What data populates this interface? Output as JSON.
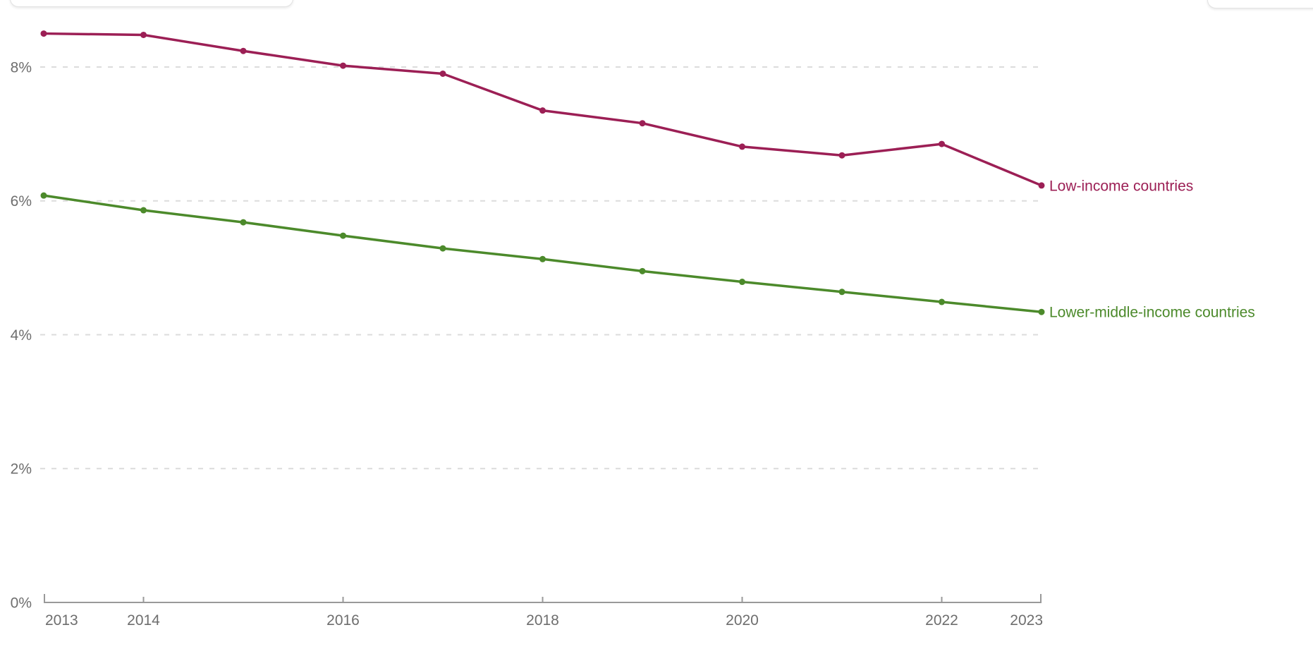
{
  "top_bar": {
    "left_control_name": "settings-control-cutoff",
    "right_control_name": "entity-control-cutoff"
  },
  "chart_data": {
    "type": "line",
    "x": [
      2013,
      2014,
      2015,
      2016,
      2017,
      2018,
      2019,
      2020,
      2021,
      2022,
      2023
    ],
    "series": [
      {
        "name": "Low-income countries",
        "color": "#9c1f55",
        "values": [
          8.5,
          8.48,
          8.24,
          8.02,
          7.9,
          7.35,
          7.16,
          6.81,
          6.68,
          6.85,
          6.23
        ]
      },
      {
        "name": "Lower-middle-income countries",
        "color": "#4c8a2b",
        "values": [
          6.08,
          5.86,
          5.68,
          5.48,
          5.29,
          5.13,
          4.95,
          4.79,
          4.64,
          4.49,
          4.34
        ]
      }
    ],
    "y_ticks": [
      {
        "value": 0,
        "label": "0%"
      },
      {
        "value": 2,
        "label": "2%"
      },
      {
        "value": 4,
        "label": "4%"
      },
      {
        "value": 6,
        "label": "6%"
      },
      {
        "value": 8,
        "label": "8%"
      }
    ],
    "x_tick_years": [
      2013,
      2014,
      2016,
      2018,
      2020,
      2022,
      2023
    ],
    "ylim": [
      0,
      8.5
    ],
    "xlim": [
      2013,
      2023
    ],
    "grid": "dashed-horizontal",
    "legend_position": "line-end-labels",
    "title": "",
    "xlabel": "",
    "ylabel": ""
  },
  "style": {
    "gridline_color": "#dcdcdc",
    "axis_color": "#999999",
    "tick_label_color": "#6e6e6e",
    "background": "#ffffff"
  }
}
